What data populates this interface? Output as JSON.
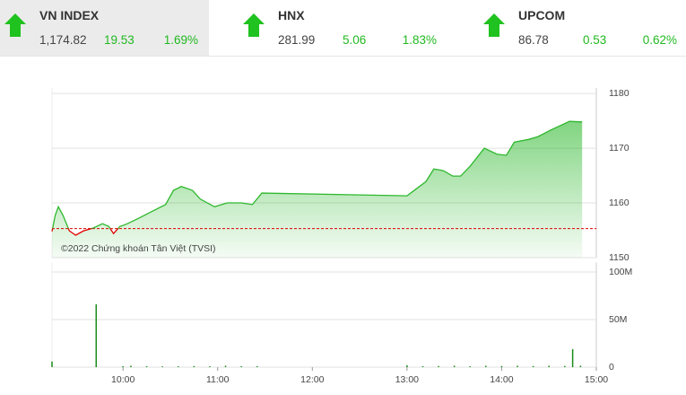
{
  "indices": [
    {
      "name": "VN INDEX",
      "value": "1,174.82",
      "change": "19.53",
      "percent": "1.69%"
    },
    {
      "name": "HNX",
      "value": "281.99",
      "change": "5.06",
      "percent": "1.83%"
    },
    {
      "name": "UPCOM",
      "value": "86.78",
      "change": "0.53",
      "percent": "0.62%"
    }
  ],
  "chart_data": [
    {
      "type": "area",
      "annotation": "©2022 Chứng khoán Tân Việt (TVSI)",
      "x": [
        555,
        557,
        559,
        562,
        566,
        570,
        575,
        581,
        587,
        591,
        594,
        598,
        602,
        610,
        618,
        627,
        632,
        637,
        644,
        649,
        658,
        666,
        675,
        682,
        688,
        780,
        786,
        792,
        797,
        803,
        809,
        814,
        820,
        829,
        837,
        843,
        848,
        857,
        863,
        871,
        883,
        891
      ],
      "series": [
        {
          "name": "VN INDEX",
          "color": "#2db82d",
          "below_color": "#e00000",
          "values": [
            1154.8,
            1157.7,
            1159.3,
            1157.7,
            1154.9,
            1154.1,
            1154.9,
            1155.4,
            1156.2,
            1155.7,
            1154.4,
            1155.7,
            1156.1,
            1157.2,
            1158.4,
            1159.7,
            1162.3,
            1163.0,
            1162.3,
            1160.7,
            1159.3,
            1160.0,
            1160.0,
            1159.7,
            1161.8,
            1161.3,
            1162.6,
            1163.9,
            1166.2,
            1165.9,
            1164.9,
            1164.9,
            1166.7,
            1170.0,
            1168.9,
            1168.7,
            1171.1,
            1171.6,
            1172.1,
            1173.3,
            1174.9,
            1174.8
          ]
        }
      ],
      "reference": 1155.3,
      "xlim": [
        555,
        900
      ],
      "ylim": [
        1150,
        1181
      ],
      "yticks": [
        1150,
        1160,
        1170,
        1180
      ],
      "grid": true
    },
    {
      "type": "bar",
      "color": "#1a8c1a",
      "x": [
        555,
        583,
        600,
        605,
        615,
        625,
        635,
        645,
        655,
        665,
        675,
        685,
        780,
        790,
        800,
        810,
        820,
        830,
        840,
        850,
        860,
        870,
        880,
        885,
        890
      ],
      "values": [
        6,
        66,
        1,
        1.5,
        1,
        0.8,
        1,
        1.2,
        1,
        1.5,
        1,
        1,
        2,
        1,
        1.2,
        1.5,
        1,
        1.5,
        1.2,
        1.5,
        1.2,
        1.5,
        1.3,
        19,
        1.5
      ],
      "xlim": [
        555,
        900
      ],
      "ylim": [
        0,
        110
      ],
      "yticks": [
        0,
        {
          "value": 50,
          "label": "50M"
        },
        {
          "value": 100,
          "label": "100M"
        }
      ],
      "xticks": [
        {
          "value": 600,
          "label": "10:00"
        },
        {
          "value": 660,
          "label": "11:00"
        },
        {
          "value": 720,
          "label": "12:00"
        },
        {
          "value": 780,
          "label": "13:00"
        },
        {
          "value": 840,
          "label": "14:00"
        },
        {
          "value": 900,
          "label": "15:00"
        }
      ],
      "grid": true
    }
  ]
}
